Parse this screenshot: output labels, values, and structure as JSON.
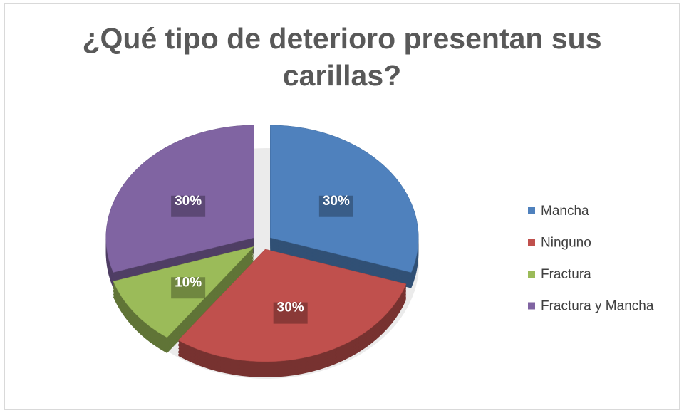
{
  "chart_data": {
    "type": "pie",
    "title": "¿Qué tipo de deterioro presentan sus carillas?",
    "categories": [
      "Mancha",
      "Ninguno",
      "Fractura",
      "Fractura y Mancha"
    ],
    "values": [
      30,
      30,
      10,
      30
    ],
    "value_labels": [
      "30%",
      "30%",
      "10%",
      "30%"
    ],
    "colors": [
      "#4f81bd",
      "#c0504d",
      "#9bbb59",
      "#8064a2"
    ],
    "legend": "right"
  }
}
